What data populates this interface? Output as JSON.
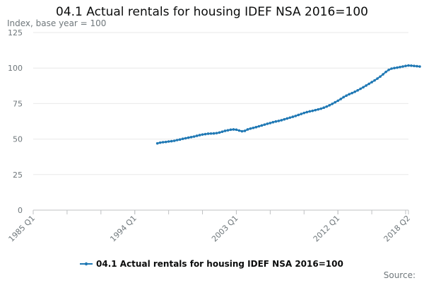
{
  "chart_data": {
    "type": "line",
    "title": "04.1 Actual rentals for housing IDEF NSA 2016=100",
    "subtitle": "Index, base year = 100",
    "ylim": [
      0,
      125
    ],
    "yticks": [
      0,
      25,
      50,
      75,
      100,
      125
    ],
    "xlim": [
      "1985 Q1",
      "2018 Q2"
    ],
    "xticks": [
      "1985 Q1",
      "1994 Q1",
      "2003 Q1",
      "2012 Q1",
      "2018 Q2"
    ],
    "legend_position": "bottom",
    "grid": true,
    "color": "#1f78b4",
    "series": [
      {
        "name": "04.1 Actual rentals for housing IDEF NSA 2016=100",
        "start": "1996 Q1",
        "frequency": "quarterly",
        "values": [
          47.0,
          47.5,
          47.8,
          48.0,
          48.3,
          48.5,
          48.8,
          49.3,
          49.7,
          50.2,
          50.6,
          51.0,
          51.4,
          51.8,
          52.3,
          52.8,
          53.2,
          53.5,
          53.8,
          53.9,
          54.0,
          54.2,
          54.6,
          55.2,
          55.8,
          56.2,
          56.6,
          56.8,
          56.6,
          56.0,
          55.5,
          55.8,
          56.8,
          57.4,
          57.9,
          58.4,
          59.0,
          59.6,
          60.2,
          60.8,
          61.3,
          61.9,
          62.4,
          62.8,
          63.3,
          63.9,
          64.5,
          65.1,
          65.7,
          66.3,
          67.0,
          67.7,
          68.4,
          69.0,
          69.5,
          69.9,
          70.4,
          70.9,
          71.4,
          72.1,
          72.9,
          73.8,
          74.8,
          75.9,
          77.0,
          78.2,
          79.5,
          80.6,
          81.6,
          82.4,
          83.3,
          84.3,
          85.4,
          86.5,
          87.7,
          88.9,
          90.1,
          91.3,
          92.6,
          94.0,
          95.6,
          97.3,
          98.7,
          99.6,
          100.0,
          100.3,
          100.7,
          101.1,
          101.5,
          101.8,
          101.7,
          101.5,
          101.3,
          101.1
        ]
      }
    ]
  },
  "footer": {
    "source_label": "Source:"
  }
}
